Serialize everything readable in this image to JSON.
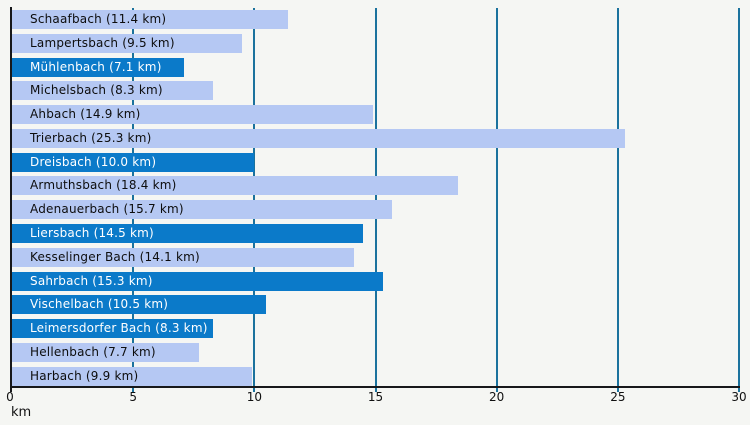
{
  "chart_data": {
    "type": "bar",
    "orientation": "horizontal",
    "title": "",
    "xlabel": "km",
    "ylabel": "",
    "unit": "km",
    "xlim": [
      0,
      30
    ],
    "ticks": [
      "0",
      "5",
      "10",
      "15",
      "20",
      "25",
      "30"
    ],
    "tick_values": [
      0,
      5,
      10,
      15,
      20,
      25,
      30
    ],
    "grid": "vertical",
    "legend": "none",
    "items": [
      {
        "label": "Schaafbach",
        "value": 11.4,
        "display": "Schaafbach (11.4 km)",
        "style": "light"
      },
      {
        "label": "Lampertsbach",
        "value": 9.5,
        "display": "Lampertsbach (9.5 km)",
        "style": "light"
      },
      {
        "label": "Mühlenbach",
        "value": 7.1,
        "display": "Mühlenbach (7.1 km)",
        "style": "dark"
      },
      {
        "label": "Michelsbach",
        "value": 8.3,
        "display": "Michelsbach (8.3 km)",
        "style": "light"
      },
      {
        "label": "Ahbach",
        "value": 14.9,
        "display": "Ahbach (14.9 km)",
        "style": "light"
      },
      {
        "label": "Trierbach",
        "value": 25.3,
        "display": "Trierbach (25.3 km)",
        "style": "light"
      },
      {
        "label": "Dreisbach",
        "value": 10.0,
        "display": "Dreisbach (10.0 km)",
        "style": "dark"
      },
      {
        "label": "Armuthsbach",
        "value": 18.4,
        "display": "Armuthsbach (18.4 km)",
        "style": "light"
      },
      {
        "label": "Adenauerbach",
        "value": 15.7,
        "display": "Adenauerbach (15.7 km)",
        "style": "light"
      },
      {
        "label": "Liersbach",
        "value": 14.5,
        "display": "Liersbach (14.5 km)",
        "style": "dark"
      },
      {
        "label": "Kesselinger Bach",
        "value": 14.1,
        "display": "Kesselinger Bach (14.1 km)",
        "style": "light"
      },
      {
        "label": "Sahrbach",
        "value": 15.3,
        "display": "Sahrbach (15.3 km)",
        "style": "dark"
      },
      {
        "label": "Vischelbach",
        "value": 10.5,
        "display": "Vischelbach (10.5 km)",
        "style": "dark"
      },
      {
        "label": "Leimersdorfer Bach",
        "value": 8.3,
        "display": "Leimersdorfer Bach (8.3 km)",
        "style": "dark"
      },
      {
        "label": "Hellenbach",
        "value": 7.7,
        "display": "Hellenbach (7.7 km)",
        "style": "light"
      },
      {
        "label": "Harbach",
        "value": 9.9,
        "display": "Harbach (9.9 km)",
        "style": "light"
      }
    ]
  },
  "colors": {
    "background": "#f5f6f3",
    "bar_light": "#b5c8f3",
    "bar_dark": "#0b7ac9",
    "bar_label_on_light": "#0d0d0d",
    "bar_label_on_dark": "#ffffff",
    "gridline": "#1b729d",
    "axis": "#17181a",
    "tick_label": "#111111"
  }
}
